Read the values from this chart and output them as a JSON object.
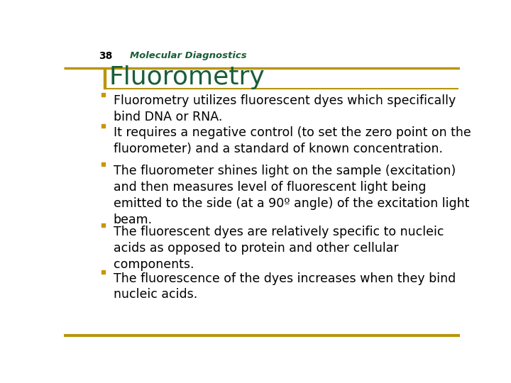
{
  "slide_number": "38",
  "header_label": "Molecular Diagnostics",
  "title": "Fluorometry",
  "background_color": "#ffffff",
  "gold_color": "#B8960C",
  "text_color": "#000000",
  "bullet_color": "#C8960C",
  "title_color": "#1a5e38",
  "header_text_color": "#1a5e38",
  "slide_num_color": "#000000",
  "title_font_size": 26,
  "header_font_size": 9.5,
  "slide_num_font_size": 10,
  "bullet_font_size": 12.5,
  "bullets": [
    "Fluorometry utilizes fluorescent dyes which specifically\nbind DNA or RNA.",
    "It requires a negative control (to set the zero point on the\nfluorometer) and a standard of known concentration.",
    "The fluorometer shines light on the sample (excitation)\nand then measures level of fluorescent light being\nemitted to the side (at a 90º angle) of the excitation light\nbeam.",
    "The fluorescent dyes are relatively specific to nucleic\nacids as opposed to protein and other cellular\ncomponents.",
    "The fluorescence of the dyes increases when they bind\nnucleic acids."
  ]
}
